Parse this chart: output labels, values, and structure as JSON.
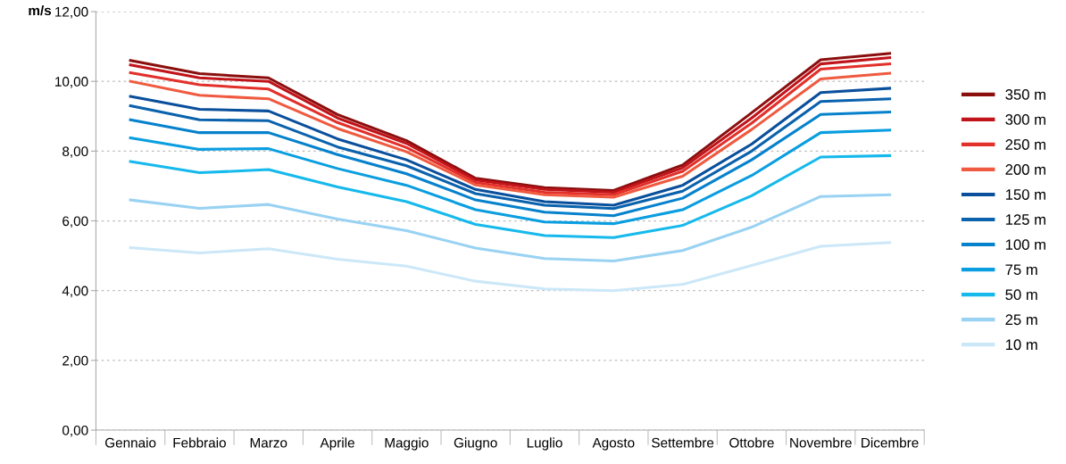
{
  "chart_data": {
    "type": "line",
    "ylabel": "m/s",
    "categories": [
      "Gennaio",
      "Febbraio",
      "Marzo",
      "Aprile",
      "Maggio",
      "Giugno",
      "Luglio",
      "Agosto",
      "Settembre",
      "Ottobre",
      "Novembre",
      "Dicembre"
    ],
    "ylim": [
      0,
      12
    ],
    "yticks": [
      {
        "value": 0,
        "label": "0,00"
      },
      {
        "value": 2,
        "label": "2,00"
      },
      {
        "value": 4,
        "label": "4,00"
      },
      {
        "value": 6,
        "label": "6,00"
      },
      {
        "value": 8,
        "label": "8,00"
      },
      {
        "value": 10,
        "label": "10,00"
      },
      {
        "value": 12,
        "label": "12,00"
      }
    ],
    "grid": "y",
    "legend": "right",
    "marker": "none",
    "line_style": "solid",
    "series": [
      {
        "name": "350 m",
        "color": "#8b0e0e",
        "values": [
          10.6,
          10.22,
          10.1,
          9.05,
          8.3,
          7.22,
          6.95,
          6.87,
          7.6,
          9.1,
          10.62,
          10.8
        ]
      },
      {
        "name": "300 m",
        "color": "#c0131a",
        "values": [
          10.47,
          10.1,
          10.0,
          8.95,
          8.22,
          7.17,
          6.9,
          6.82,
          7.52,
          8.95,
          10.5,
          10.68
        ]
      },
      {
        "name": "250 m",
        "color": "#e2302a",
        "values": [
          10.25,
          9.9,
          9.78,
          8.82,
          8.1,
          7.1,
          6.82,
          6.75,
          7.42,
          8.8,
          10.35,
          10.5
        ]
      },
      {
        "name": "200 m",
        "color": "#ef5a40",
        "values": [
          10.0,
          9.6,
          9.5,
          8.65,
          7.98,
          7.03,
          6.75,
          6.68,
          7.28,
          8.62,
          10.07,
          10.23
        ]
      },
      {
        "name": "150 m",
        "color": "#0a4f9c",
        "values": [
          9.57,
          9.2,
          9.15,
          8.35,
          7.75,
          6.9,
          6.55,
          6.45,
          7.02,
          8.2,
          9.68,
          9.8
        ]
      },
      {
        "name": "125 m",
        "color": "#0a62ad",
        "values": [
          9.3,
          8.9,
          8.87,
          8.12,
          7.58,
          6.78,
          6.45,
          6.35,
          6.85,
          8.0,
          9.42,
          9.5
        ]
      },
      {
        "name": "100 m",
        "color": "#0681cc",
        "values": [
          8.9,
          8.53,
          8.53,
          7.9,
          7.35,
          6.6,
          6.25,
          6.15,
          6.65,
          7.75,
          9.05,
          9.12
        ]
      },
      {
        "name": "75 m",
        "color": "#0a9ee0",
        "values": [
          8.38,
          8.05,
          8.07,
          7.5,
          7.02,
          6.32,
          5.97,
          5.92,
          6.32,
          7.3,
          8.53,
          8.6
        ]
      },
      {
        "name": "50 m",
        "color": "#16b9ec",
        "values": [
          7.7,
          7.38,
          7.47,
          6.97,
          6.55,
          5.9,
          5.58,
          5.52,
          5.87,
          6.72,
          7.83,
          7.87
        ]
      },
      {
        "name": "25 m",
        "color": "#99d2f2",
        "values": [
          6.6,
          6.36,
          6.47,
          6.05,
          5.72,
          5.22,
          4.92,
          4.85,
          5.15,
          5.82,
          6.7,
          6.75
        ]
      },
      {
        "name": "10 m",
        "color": "#cce8f8",
        "values": [
          5.23,
          5.08,
          5.2,
          4.9,
          4.7,
          4.27,
          4.05,
          4.0,
          4.18,
          4.72,
          5.27,
          5.38
        ]
      }
    ]
  }
}
